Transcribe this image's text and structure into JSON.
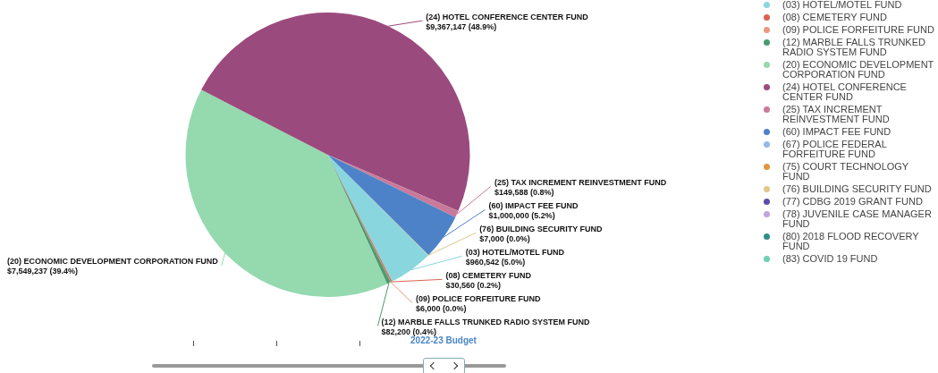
{
  "chart_data": {
    "type": "pie",
    "categories": [
      "(03) HOTEL/MOTEL FUND",
      "(08) CEMETERY FUND",
      "(09) POLICE FORFEITURE FUND",
      "(12) MARBLE FALLS TRUNKED RADIO SYSTEM FUND",
      "(20) ECONOMIC DEVELOPMENT CORPORATION FUND",
      "(24) HOTEL CONFERENCE CENTER FUND",
      "(25) TAX INCREMENT REINVESTMENT FUND",
      "(60) IMPACT FEE FUND",
      "(67) POLICE FEDERAL FORFEITURE FUND",
      "(75) COURT TECHNOLOGY FUND",
      "(76) BUILDING SECURITY FUND",
      "(77) CDBG 2019 GRANT FUND",
      "(78) JUVENILE CASE MANAGER FUND",
      "(80) 2018 FLOOD RECOVERY FUND",
      "(83) COVID 19 FUND"
    ],
    "values": [
      960542,
      30560,
      6000,
      82200,
      7549237,
      9367147,
      149588,
      1000000,
      0,
      0,
      7000,
      0,
      0,
      0,
      0
    ],
    "value_labels": [
      "$960,542 (5.0%)",
      "$30,560 (0.2%)",
      "$6,000 (0.0%)",
      "$82,200 (0.4%)",
      "$7,549,237 (39.4%)",
      "$9,367,147 (48.9%)",
      "$149,588 (0.8%)",
      "$1,000,000 (5.2%)",
      null,
      null,
      "$7,000 (0.0%)",
      null,
      null,
      null,
      null
    ],
    "colors": [
      "#8ad6de",
      "#d9634f",
      "#e89a80",
      "#4a9a70",
      "#95d9ae",
      "#9b4a7e",
      "#c97a9a",
      "#4d82c8",
      "#95b8e6",
      "#e0953f",
      "#e0c88a",
      "#5a4fa8",
      "#c0a6e0",
      "#2f8f86",
      "#72cfb4"
    ],
    "legend": "right",
    "annotations": [
      "2022-23 Budget"
    ]
  }
}
